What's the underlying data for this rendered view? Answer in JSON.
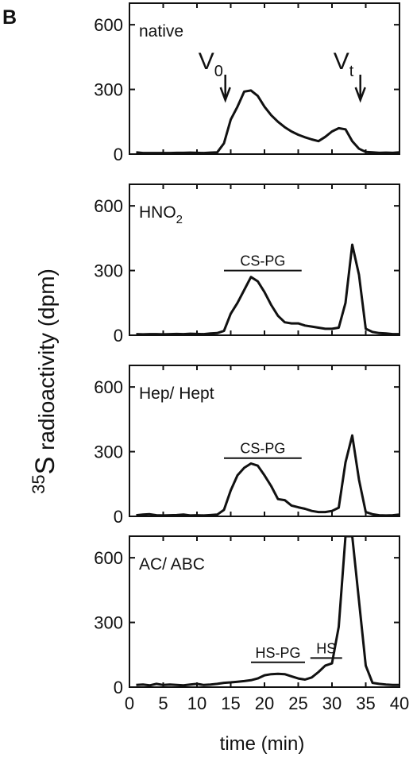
{
  "figure_letter": "B",
  "ylabel_sup": "35",
  "ylabel_main": "S",
  "ylabel_rest": " radioactivity (dpm)",
  "xlabel": "time (min)",
  "chart_data": [
    {
      "type": "line",
      "panel_label": "native",
      "xlim": [
        0,
        40
      ],
      "ylim": [
        0,
        700
      ],
      "yticks": [
        0,
        300,
        600
      ],
      "x": [
        1,
        2,
        3,
        4,
        5,
        6,
        7,
        8,
        9,
        10,
        11,
        12,
        13,
        14,
        15,
        16,
        17,
        18,
        19,
        20,
        21,
        22,
        23,
        24,
        25,
        26,
        27,
        28,
        29,
        30,
        31,
        32,
        33,
        34,
        35,
        36,
        37,
        38,
        39,
        40
      ],
      "values": [
        8,
        5,
        5,
        5,
        5,
        5,
        6,
        6,
        7,
        6,
        5,
        7,
        8,
        50,
        160,
        220,
        290,
        295,
        270,
        220,
        180,
        150,
        125,
        105,
        90,
        78,
        68,
        60,
        80,
        105,
        120,
        115,
        60,
        25,
        10,
        8,
        6,
        7,
        6,
        8
      ],
      "annotations": [
        {
          "label": "V",
          "sub": "0",
          "x": 14.2
        },
        {
          "label": "V",
          "sub": "t",
          "x": 34.2
        }
      ]
    },
    {
      "type": "line",
      "panel_label": "HNO",
      "panel_label_sub": "2",
      "xlim": [
        0,
        40
      ],
      "ylim": [
        0,
        700
      ],
      "yticks": [
        0,
        300,
        600
      ],
      "x": [
        1,
        2,
        3,
        4,
        5,
        6,
        7,
        8,
        9,
        10,
        11,
        12,
        13,
        14,
        15,
        16,
        17,
        18,
        19,
        20,
        21,
        22,
        23,
        24,
        25,
        26,
        27,
        28,
        29,
        30,
        31,
        32,
        33,
        34,
        35,
        36,
        37,
        38,
        39,
        40
      ],
      "values": [
        5,
        4,
        5,
        5,
        4,
        5,
        6,
        5,
        7,
        6,
        5,
        8,
        10,
        20,
        100,
        150,
        210,
        270,
        250,
        200,
        140,
        90,
        60,
        55,
        55,
        45,
        40,
        35,
        30,
        30,
        35,
        150,
        420,
        280,
        30,
        15,
        10,
        8,
        5,
        5
      ],
      "brackets": [
        {
          "label": "CS-PG",
          "x_start": 14,
          "x_end": 25.5,
          "y": 300
        }
      ]
    },
    {
      "type": "line",
      "panel_label": "Hep/ Hept",
      "xlim": [
        0,
        40
      ],
      "ylim": [
        0,
        700
      ],
      "yticks": [
        0,
        300,
        600
      ],
      "x": [
        1,
        2,
        3,
        4,
        5,
        6,
        7,
        8,
        9,
        10,
        11,
        12,
        13,
        14,
        15,
        16,
        17,
        18,
        19,
        20,
        21,
        22,
        23,
        24,
        25,
        26,
        27,
        28,
        29,
        30,
        31,
        32,
        33,
        34,
        35,
        36,
        37,
        38,
        39,
        40
      ],
      "values": [
        5,
        8,
        10,
        5,
        4,
        5,
        6,
        8,
        4,
        5,
        4,
        6,
        8,
        30,
        120,
        190,
        225,
        245,
        235,
        190,
        140,
        80,
        75,
        50,
        42,
        35,
        25,
        20,
        20,
        25,
        40,
        250,
        375,
        170,
        20,
        10,
        5,
        4,
        5,
        8
      ],
      "brackets": [
        {
          "label": "CS-PG",
          "x_start": 14,
          "x_end": 25.5,
          "y": 270
        }
      ]
    },
    {
      "type": "line",
      "panel_label": "AC/ ABC",
      "xlim": [
        0,
        40
      ],
      "ylim": [
        0,
        700
      ],
      "yticks": [
        0,
        300,
        600
      ],
      "xticks": [
        0,
        5,
        10,
        15,
        20,
        25,
        30,
        35,
        40
      ],
      "x": [
        1,
        2,
        3,
        4,
        5,
        6,
        7,
        8,
        9,
        10,
        11,
        12,
        13,
        14,
        15,
        16,
        17,
        18,
        19,
        20,
        21,
        22,
        23,
        24,
        25,
        26,
        27,
        28,
        29,
        30,
        31,
        32,
        33,
        34,
        35,
        36,
        37,
        38,
        39,
        40
      ],
      "values": [
        10,
        12,
        8,
        15,
        10,
        12,
        10,
        8,
        12,
        15,
        10,
        12,
        15,
        20,
        22,
        25,
        28,
        32,
        40,
        55,
        60,
        62,
        60,
        50,
        40,
        35,
        45,
        70,
        100,
        110,
        280,
        700,
        700,
        400,
        100,
        20,
        15,
        12,
        10,
        10
      ],
      "brackets": [
        {
          "label": "HS-PG",
          "x_start": 18,
          "x_end": 26,
          "y": 115
        },
        {
          "label": "HS",
          "x_start": 26.8,
          "x_end": 31.5,
          "y": 135
        }
      ]
    }
  ]
}
